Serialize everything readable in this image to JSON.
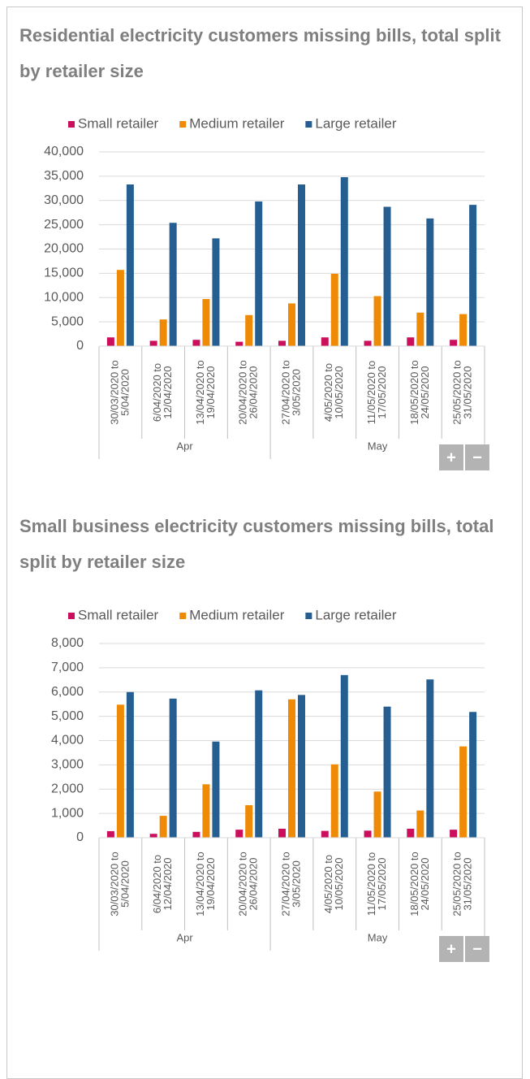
{
  "chart_data": [
    {
      "type": "bar",
      "title": "Residential electricity customers missing bills, total split by retailer size",
      "groups": [
        {
          "name": "Apr",
          "categories": [
            [
              "30/03/2020 to",
              "5/04/2020"
            ],
            [
              "6/04/2020 to",
              "12/04/2020"
            ],
            [
              "13/04/2020 to",
              "19/04/2020"
            ],
            [
              "20/04/2020 to",
              "26/04/2020"
            ]
          ]
        },
        {
          "name": "May",
          "categories": [
            [
              "27/04/2020 to",
              "3/05/2020"
            ],
            [
              "4/05/2020 to",
              "10/05/2020"
            ],
            [
              "11/05/2020 to",
              "17/05/2020"
            ],
            [
              "18/05/2020 to",
              "24/05/2020"
            ],
            [
              "25/05/2020 to",
              "31/05/2020"
            ]
          ]
        }
      ],
      "series": [
        {
          "name": "Small retailer",
          "color": "#cc0f5c",
          "values": [
            1800,
            1100,
            1300,
            900,
            1100,
            1800,
            1100,
            1800,
            1300
          ]
        },
        {
          "name": "Medium retailer",
          "color": "#ee8a06",
          "values": [
            15700,
            5500,
            9700,
            6400,
            8800,
            14900,
            10300,
            6900,
            6600
          ]
        },
        {
          "name": "Large retailer",
          "color": "#255e91",
          "values": [
            33300,
            25400,
            22200,
            29800,
            33300,
            34800,
            28700,
            26300,
            29100
          ]
        }
      ],
      "ylim": [
        0,
        40000
      ],
      "yticks": [
        0,
        {
          "value": 5000,
          "label": "5,000"
        },
        {
          "value": 10000,
          "label": "10,000"
        },
        {
          "value": 15000,
          "label": "15,000"
        },
        {
          "value": 20000,
          "label": "20,000"
        },
        {
          "value": 25000,
          "label": "25,000"
        },
        {
          "value": 30000,
          "label": "30,000"
        },
        {
          "value": 35000,
          "label": "35,000"
        },
        {
          "value": 40000,
          "label": "40,000"
        }
      ],
      "grid": true,
      "legend": "top"
    },
    {
      "type": "bar",
      "title": "Small business electricity customers missing bills, total split by retailer size",
      "groups": [
        {
          "name": "Apr",
          "categories": [
            [
              "30/03/2020 to",
              "5/04/2020"
            ],
            [
              "6/04/2020 to",
              "12/04/2020"
            ],
            [
              "13/04/2020 to",
              "19/04/2020"
            ],
            [
              "20/04/2020 to",
              "26/04/2020"
            ]
          ]
        },
        {
          "name": "May",
          "categories": [
            [
              "27/04/2020 to",
              "3/05/2020"
            ],
            [
              "4/05/2020 to",
              "10/05/2020"
            ],
            [
              "11/05/2020 to",
              "17/05/2020"
            ],
            [
              "18/05/2020 to",
              "24/05/2020"
            ],
            [
              "25/05/2020 to",
              "31/05/2020"
            ]
          ]
        }
      ],
      "series": [
        {
          "name": "Small retailer",
          "color": "#cc0f5c",
          "values": [
            270,
            160,
            240,
            330,
            370,
            280,
            290,
            370,
            330
          ]
        },
        {
          "name": "Medium retailer",
          "color": "#ee8a06",
          "values": [
            5480,
            900,
            2200,
            1340,
            5700,
            3020,
            1900,
            1120,
            3760
          ]
        },
        {
          "name": "Large retailer",
          "color": "#255e91",
          "values": [
            6000,
            5730,
            3960,
            6070,
            5880,
            6700,
            5400,
            6520,
            5180
          ]
        }
      ],
      "ylim": [
        0,
        8000
      ],
      "yticks": [
        0,
        {
          "value": 1000,
          "label": "1,000"
        },
        {
          "value": 2000,
          "label": "2,000"
        },
        {
          "value": 3000,
          "label": "3,000"
        },
        {
          "value": 4000,
          "label": "4,000"
        },
        {
          "value": 5000,
          "label": "5,000"
        },
        {
          "value": 6000,
          "label": "6,000"
        },
        {
          "value": 7000,
          "label": "7,000"
        },
        {
          "value": 8000,
          "label": "8,000"
        }
      ],
      "grid": true,
      "legend": "top"
    }
  ],
  "controls": {
    "zoom_in": "+",
    "zoom_out": "−"
  }
}
